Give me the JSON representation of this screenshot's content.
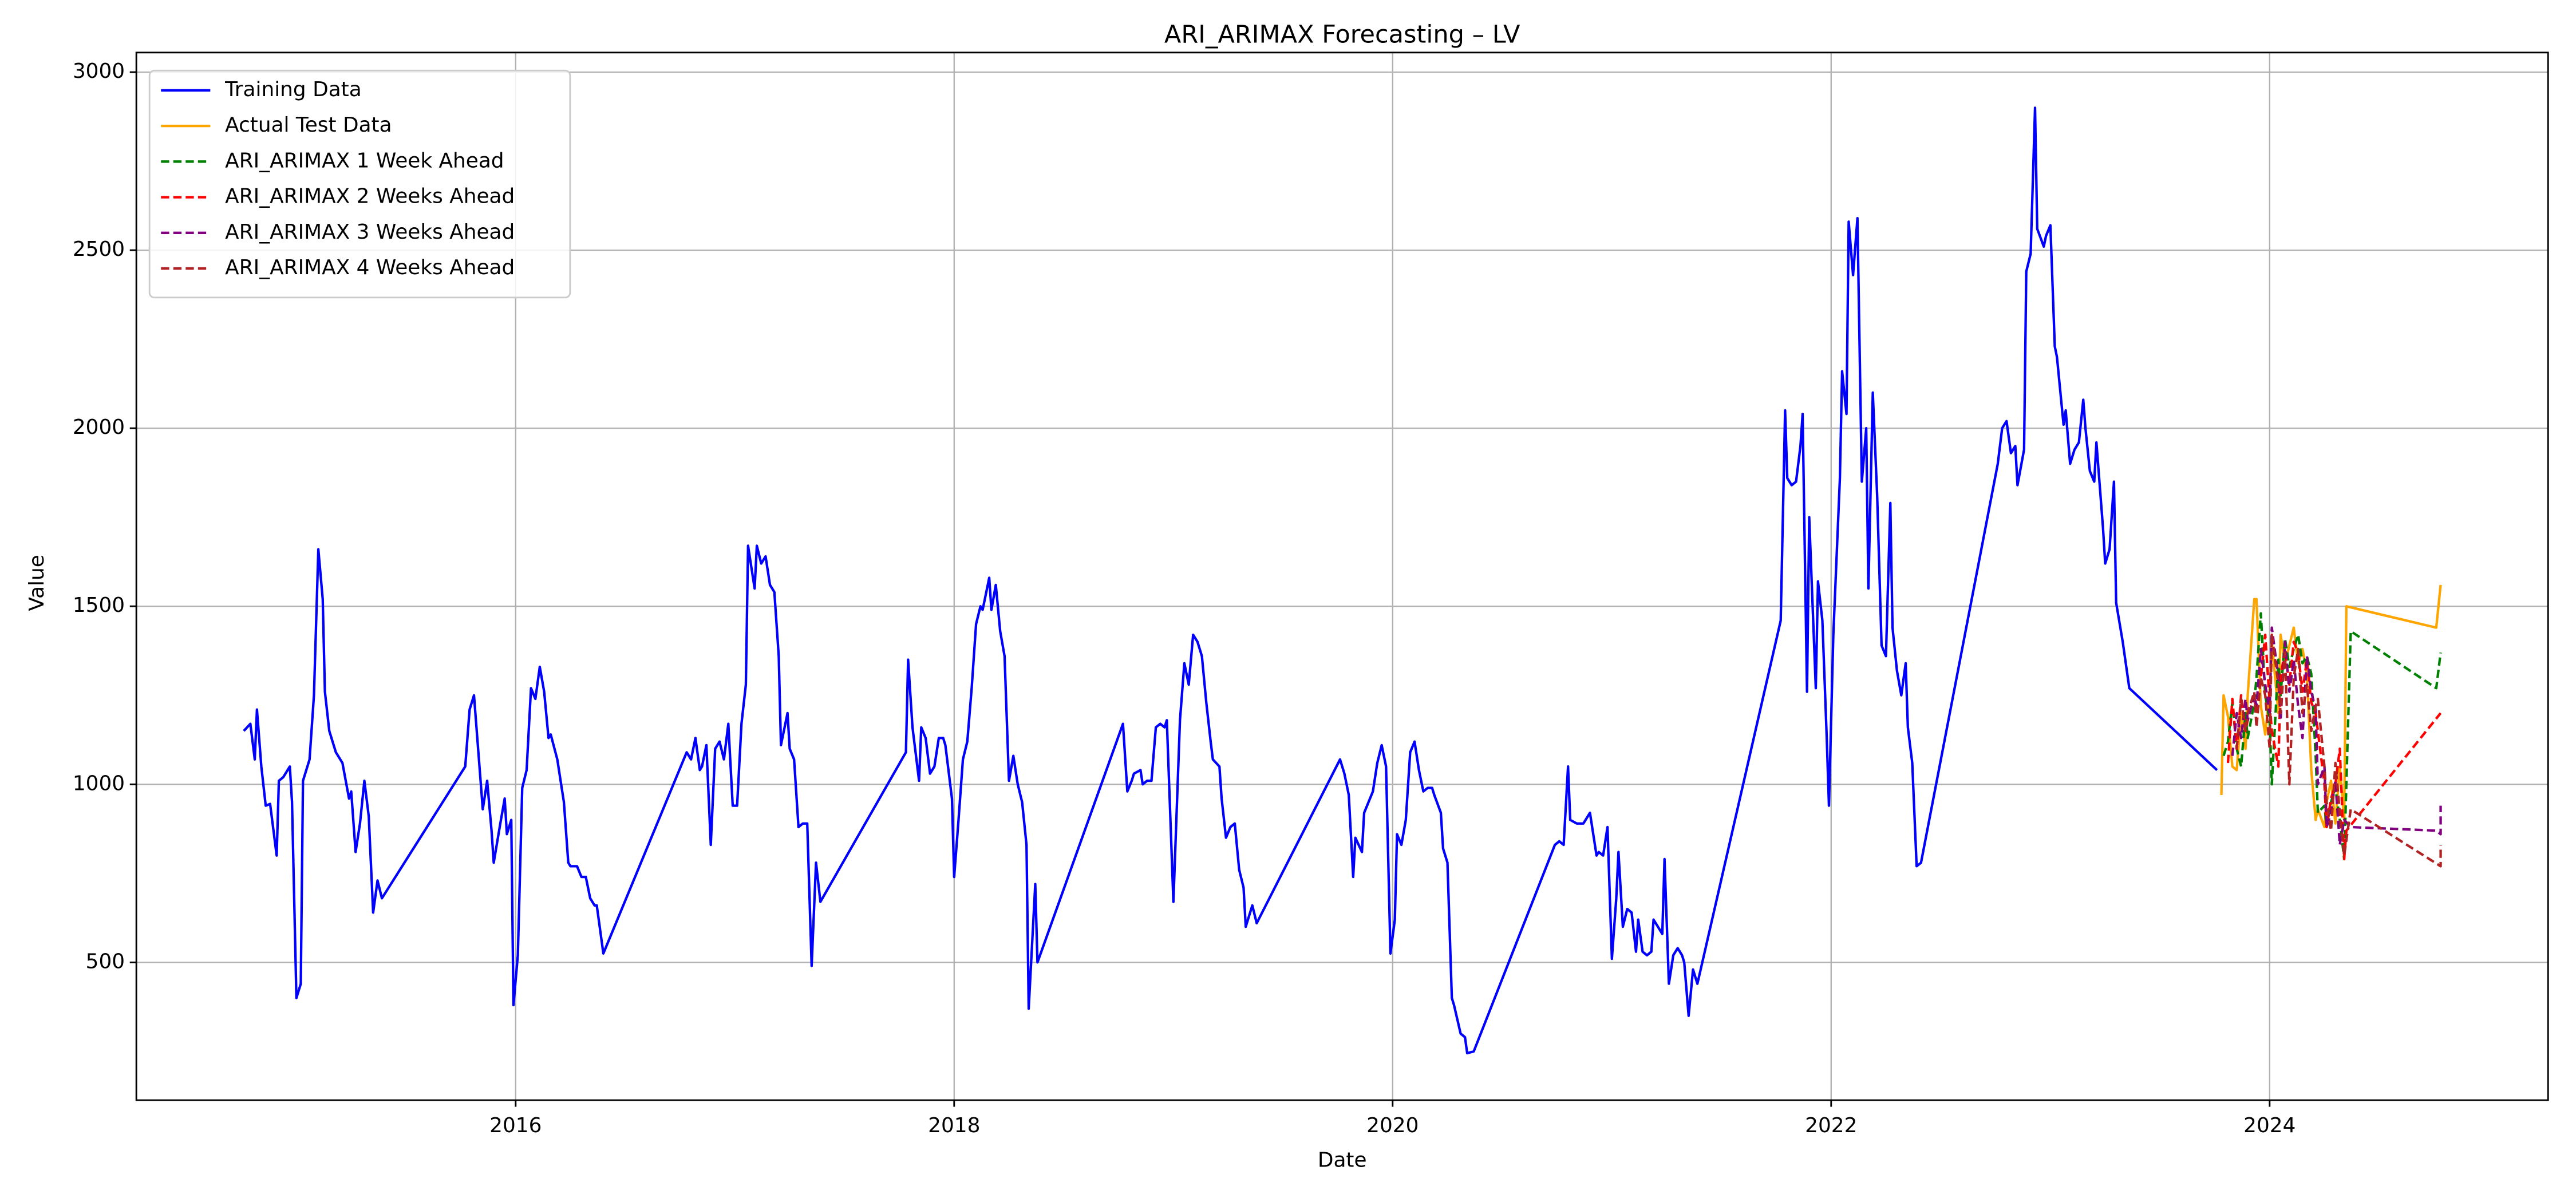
{
  "chart_data": {
    "type": "line",
    "title": "ARI_ARIMAX Forecasting – LV",
    "x_label": "Date",
    "y_label": "Value",
    "xlim": [
      2014.27,
      2025.27
    ],
    "ylim": [
      113,
      3055
    ],
    "xticks": [
      2016,
      2018,
      2020,
      2022,
      2024
    ],
    "yticks": [
      500,
      1000,
      1500,
      2000,
      2500,
      3000
    ],
    "grid": true,
    "legend": "upper left",
    "series": [
      {
        "name": "Training Data",
        "color": "#0000ff",
        "linestyle": "solid",
        "x": [
          2014.76,
          2014.79,
          2014.81,
          2014.82,
          2014.84,
          2014.86,
          2014.88,
          2014.91,
          2014.92,
          2014.94,
          2014.97,
          2014.98,
          2015.0,
          2015.02,
          2015.03,
          2015.06,
          2015.08,
          2015.1,
          2015.12,
          2015.13,
          2015.15,
          2015.18,
          2015.21,
          2015.24,
          2015.25,
          2015.27,
          2015.29,
          2015.31,
          2015.33,
          2015.35,
          2015.37,
          2015.39,
          2015.77,
          2015.79,
          2015.81,
          2015.83,
          2015.85,
          2015.87,
          2015.89,
          2015.9,
          2015.93,
          2015.95,
          2015.96,
          2015.98,
          2015.99,
          2016.01,
          2016.03,
          2016.05,
          2016.07,
          2016.09,
          2016.11,
          2016.13,
          2016.15,
          2016.16,
          2016.19,
          2016.22,
          2016.24,
          2016.25,
          2016.28,
          2016.3,
          2016.32,
          2016.34,
          2016.36,
          2016.37,
          2016.4,
          2016.78,
          2016.8,
          2016.82,
          2016.84,
          2016.85,
          2016.87,
          2016.89,
          2016.91,
          2016.93,
          2016.95,
          2016.97,
          2016.99,
          2017.01,
          2017.03,
          2017.05,
          2017.06,
          2017.09,
          2017.1,
          2017.12,
          2017.14,
          2017.16,
          2017.18,
          2017.2,
          2017.21,
          2017.24,
          2017.25,
          2017.27,
          2017.29,
          2017.31,
          2017.33,
          2017.35,
          2017.37,
          2017.39,
          2017.78,
          2017.79,
          2017.81,
          2017.84,
          2017.85,
          2017.87,
          2017.89,
          2017.91,
          2017.93,
          2017.95,
          2017.96,
          2017.99,
          2018.0,
          2018.02,
          2018.04,
          2018.06,
          2018.08,
          2018.1,
          2018.12,
          2018.13,
          2018.16,
          2018.17,
          2018.19,
          2018.21,
          2018.23,
          2018.25,
          2018.27,
          2018.29,
          2018.31,
          2018.33,
          2018.34,
          2018.37,
          2018.38,
          2018.77,
          2018.79,
          2018.81,
          2018.82,
          2018.85,
          2018.86,
          2018.88,
          2018.9,
          2018.92,
          2018.94,
          2018.96,
          2018.97,
          2019.0,
          2019.03,
          2019.05,
          2019.07,
          2019.09,
          2019.11,
          2019.13,
          2019.15,
          2019.17,
          2019.18,
          2019.21,
          2019.22,
          2019.24,
          2019.26,
          2019.28,
          2019.3,
          2019.32,
          2019.33,
          2019.36,
          2019.38,
          2019.76,
          2019.78,
          2019.8,
          2019.82,
          2019.83,
          2019.86,
          2019.87,
          2019.89,
          2019.91,
          2019.93,
          2019.95,
          2019.97,
          2019.99,
          2020.01,
          2020.02,
          2020.04,
          2020.06,
          2020.08,
          2020.1,
          2020.12,
          2020.14,
          2020.16,
          2020.18,
          2020.19,
          2020.22,
          2020.23,
          2020.25,
          2020.27,
          2020.28,
          2020.31,
          2020.33,
          2020.34,
          2020.37,
          2020.74,
          2020.76,
          2020.78,
          2020.8,
          2020.81,
          2020.84,
          2020.85,
          2020.87,
          2020.89,
          2020.9,
          2020.93,
          2020.94,
          2020.96,
          2020.98,
          2021.0,
          2021.02,
          2021.03,
          2021.05,
          2021.07,
          2021.09,
          2021.11,
          2021.12,
          2021.14,
          2021.16,
          2021.18,
          2021.19,
          2021.21,
          2021.23,
          2021.24,
          2021.26,
          2021.28,
          2021.3,
          2021.32,
          2021.33,
          2021.35,
          2021.37,
          2021.39,
          2021.77,
          2021.79,
          2021.8,
          2021.82,
          2021.84,
          2021.86,
          2021.87,
          2021.89,
          2021.9,
          2021.93,
          2021.94,
          2021.96,
          2021.98,
          2021.99,
          2022.01,
          2022.04,
          2022.05,
          2022.07,
          2022.08,
          2022.1,
          2022.12,
          2022.14,
          2022.16,
          2022.17,
          2022.19,
          2022.21,
          2022.23,
          2022.25,
          2022.27,
          2022.28,
          2022.3,
          2022.32,
          2022.34,
          2022.35,
          2022.37,
          2022.39,
          2022.41,
          2022.76,
          2022.78,
          2022.8,
          2022.82,
          2022.84,
          2022.85,
          2022.88,
          2022.89,
          2022.91,
          2022.93,
          2022.94,
          2022.97,
          2022.98,
          2023.0,
          2023.02,
          2023.03,
          2023.06,
          2023.07,
          2023.09,
          2023.11,
          2023.13,
          2023.15,
          2023.16,
          2023.18,
          2023.2,
          2023.21,
          2023.24,
          2023.25,
          2023.27,
          2023.29,
          2023.3,
          2023.33,
          2023.36,
          2023.76
        ],
        "values": [
          1150,
          1170,
          1070,
          1210,
          1050,
          940,
          945,
          800,
          1010,
          1020,
          1050,
          950,
          400,
          440,
          1010,
          1070,
          1250,
          1660,
          1520,
          1260,
          1150,
          1090,
          1060,
          960,
          980,
          810,
          890,
          1010,
          910,
          640,
          730,
          680,
          1050,
          1210,
          1250,
          1090,
          930,
          1010,
          870,
          780,
          890,
          960,
          860,
          900,
          380,
          520,
          990,
          1040,
          1270,
          1240,
          1330,
          1260,
          1130,
          1140,
          1070,
          950,
          780,
          770,
          770,
          740,
          740,
          680,
          660,
          660,
          525,
          1090,
          1070,
          1130,
          1040,
          1050,
          1110,
          830,
          1100,
          1120,
          1070,
          1170,
          940,
          940,
          1170,
          1280,
          1670,
          1550,
          1670,
          1620,
          1640,
          1560,
          1540,
          1360,
          1110,
          1200,
          1100,
          1070,
          880,
          890,
          890,
          490,
          780,
          670,
          1090,
          1350,
          1160,
          1010,
          1160,
          1130,
          1030,
          1050,
          1130,
          1130,
          1110,
          960,
          740,
          900,
          1070,
          1120,
          1270,
          1450,
          1500,
          1490,
          1580,
          1490,
          1560,
          1430,
          1360,
          1010,
          1080,
          1000,
          950,
          830,
          370,
          720,
          500,
          1170,
          980,
          1010,
          1030,
          1040,
          1000,
          1010,
          1010,
          1160,
          1170,
          1160,
          1180,
          670,
          1180,
          1340,
          1280,
          1420,
          1400,
          1360,
          1230,
          1120,
          1070,
          1050,
          960,
          850,
          880,
          890,
          760,
          710,
          600,
          660,
          610,
          1070,
          1030,
          970,
          740,
          850,
          810,
          920,
          950,
          980,
          1060,
          1110,
          1050,
          525,
          620,
          860,
          830,
          900,
          1090,
          1120,
          1040,
          980,
          990,
          990,
          970,
          920,
          820,
          780,
          400,
          380,
          300,
          290,
          245,
          250,
          830,
          840,
          830,
          1050,
          900,
          890,
          890,
          890,
          910,
          920,
          800,
          810,
          800,
          880,
          510,
          680,
          810,
          600,
          650,
          640,
          530,
          620,
          530,
          520,
          530,
          620,
          600,
          580,
          790,
          440,
          520,
          540,
          520,
          500,
          350,
          480,
          440,
          1460,
          2050,
          1860,
          1840,
          1850,
          1950,
          2040,
          1260,
          1750,
          1270,
          1570,
          1460,
          1130,
          940,
          1420,
          1860,
          2160,
          2040,
          2580,
          2430,
          2590,
          1850,
          2000,
          1550,
          2100,
          1810,
          1390,
          1360,
          1790,
          1440,
          1320,
          1250,
          1340,
          1160,
          1060,
          770,
          780,
          1900,
          2000,
          2020,
          1930,
          1950,
          1840,
          1940,
          2440,
          2490,
          2900,
          2560,
          2510,
          2540,
          2570,
          2230,
          2200,
          2010,
          2050,
          1900,
          1940,
          1960,
          2080,
          2000,
          1880,
          1850,
          1960,
          1720,
          1620,
          1660,
          1850,
          1510,
          1400,
          1270,
          1040
        ]
      },
      {
        "name": "Actual Test Data",
        "color": "#ffa500",
        "linestyle": "solid",
        "x": [
          2023.78,
          2023.79,
          2023.81,
          2023.83,
          2023.85,
          2023.87,
          2023.89,
          2023.9,
          2023.93,
          2023.94,
          2023.96,
          2023.98,
          2024.0,
          2024.01,
          2024.04,
          2024.05,
          2024.07,
          2024.09,
          2024.11,
          2024.13,
          2024.15,
          2024.17,
          2024.19,
          2024.21,
          2024.22,
          2024.25,
          2024.26,
          2024.28,
          2024.3,
          2024.32,
          2024.34,
          2024.35,
          2024.76,
          2024.78
        ],
        "values": [
          970,
          1250,
          1190,
          1050,
          1040,
          1200,
          1100,
          1250,
          1520,
          1520,
          1220,
          1140,
          1260,
          1400,
          1200,
          1420,
          1340,
          1390,
          1440,
          1340,
          1380,
          1310,
          1040,
          900,
          930,
          880,
          950,
          1010,
          890,
          1050,
          900,
          1500,
          1440,
          1560
        ]
      },
      {
        "name": "ARI_ARIMAX 1 Week Ahead",
        "color": "#008000",
        "linestyle": "dashed",
        "x": [
          2023.79,
          2023.81,
          2023.83,
          2023.85,
          2023.87,
          2023.89,
          2023.9,
          2023.93,
          2023.94,
          2023.96,
          2023.98,
          2024.0,
          2024.01,
          2024.04,
          2024.05,
          2024.07,
          2024.09,
          2024.11,
          2024.13,
          2024.15,
          2024.17,
          2024.19,
          2024.21,
          2024.22,
          2024.25,
          2024.26,
          2024.28,
          2024.3,
          2024.32,
          2024.34,
          2024.35,
          2024.37,
          2024.76,
          2024.78
        ],
        "values": [
          1080,
          1120,
          1230,
          1100,
          1050,
          1200,
          1130,
          1230,
          1300,
          1480,
          1250,
          1180,
          1000,
          1350,
          1250,
          1410,
          1330,
          1380,
          1420,
          1340,
          1360,
          1310,
          1080,
          920,
          940,
          880,
          950,
          990,
          900,
          790,
          1000,
          1430,
          1270,
          1370
        ]
      },
      {
        "name": "ARI_ARIMAX 2 Weeks Ahead",
        "color": "#ff0000",
        "linestyle": "dashed",
        "x": [
          2023.81,
          2023.83,
          2023.85,
          2023.87,
          2023.89,
          2023.9,
          2023.93,
          2023.94,
          2023.96,
          2023.98,
          2024.0,
          2024.01,
          2024.04,
          2024.05,
          2024.07,
          2024.09,
          2024.11,
          2024.13,
          2024.15,
          2024.17,
          2024.19,
          2024.21,
          2024.22,
          2024.25,
          2024.26,
          2024.28,
          2024.3,
          2024.32,
          2024.34,
          2024.35,
          2024.78
        ],
        "values": [
          1060,
          1240,
          1100,
          1250,
          1150,
          1180,
          1250,
          1200,
          1300,
          1420,
          1230,
          1150,
          1050,
          1300,
          1380,
          1280,
          1400,
          1370,
          1260,
          1350,
          1230,
          1200,
          1150,
          1000,
          880,
          960,
          1000,
          1100,
          790,
          870,
          1200
        ]
      },
      {
        "name": "ARI_ARIMAX 3 Weeks Ahead",
        "color": "#800080",
        "linestyle": "dashed",
        "x": [
          2023.83,
          2023.85,
          2023.87,
          2023.89,
          2023.9,
          2023.93,
          2023.94,
          2023.96,
          2023.98,
          2024.0,
          2024.01,
          2024.04,
          2024.05,
          2024.07,
          2024.09,
          2024.11,
          2024.13,
          2024.15,
          2024.17,
          2024.19,
          2024.21,
          2024.22,
          2024.25,
          2024.26,
          2024.28,
          2024.3,
          2024.32,
          2024.34,
          2024.37,
          2024.76,
          2024.78,
          2024.78
        ],
        "values": [
          1080,
          1200,
          1130,
          1240,
          1180,
          1250,
          1220,
          1380,
          1280,
          1200,
          1440,
          1300,
          1180,
          1400,
          1260,
          1350,
          1220,
          1130,
          1360,
          1260,
          1210,
          1000,
          1050,
          880,
          920,
          1010,
          830,
          900,
          880,
          870,
          860,
          940
        ]
      },
      {
        "name": "ARI_ARIMAX 4 Weeks Ahead",
        "color": "#b22222",
        "linestyle": "dashed",
        "x": [
          2023.85,
          2023.87,
          2023.89,
          2023.9,
          2023.93,
          2023.94,
          2023.96,
          2023.98,
          2024.0,
          2024.01,
          2024.04,
          2024.05,
          2024.07,
          2024.09,
          2024.11,
          2024.13,
          2024.15,
          2024.17,
          2024.19,
          2024.21,
          2024.22,
          2024.25,
          2024.26,
          2024.28,
          2024.3,
          2024.32,
          2024.34,
          2024.37,
          2024.78,
          2024.78
        ],
        "values": [
          1100,
          1240,
          1150,
          1200,
          1260,
          1160,
          1300,
          1250,
          1100,
          1420,
          1280,
          1200,
          1370,
          1000,
          1300,
          1380,
          1200,
          1280,
          1150,
          1220,
          1240,
          1050,
          950,
          870,
          1060,
          920,
          800,
          930,
          770,
          830
        ]
      }
    ]
  }
}
